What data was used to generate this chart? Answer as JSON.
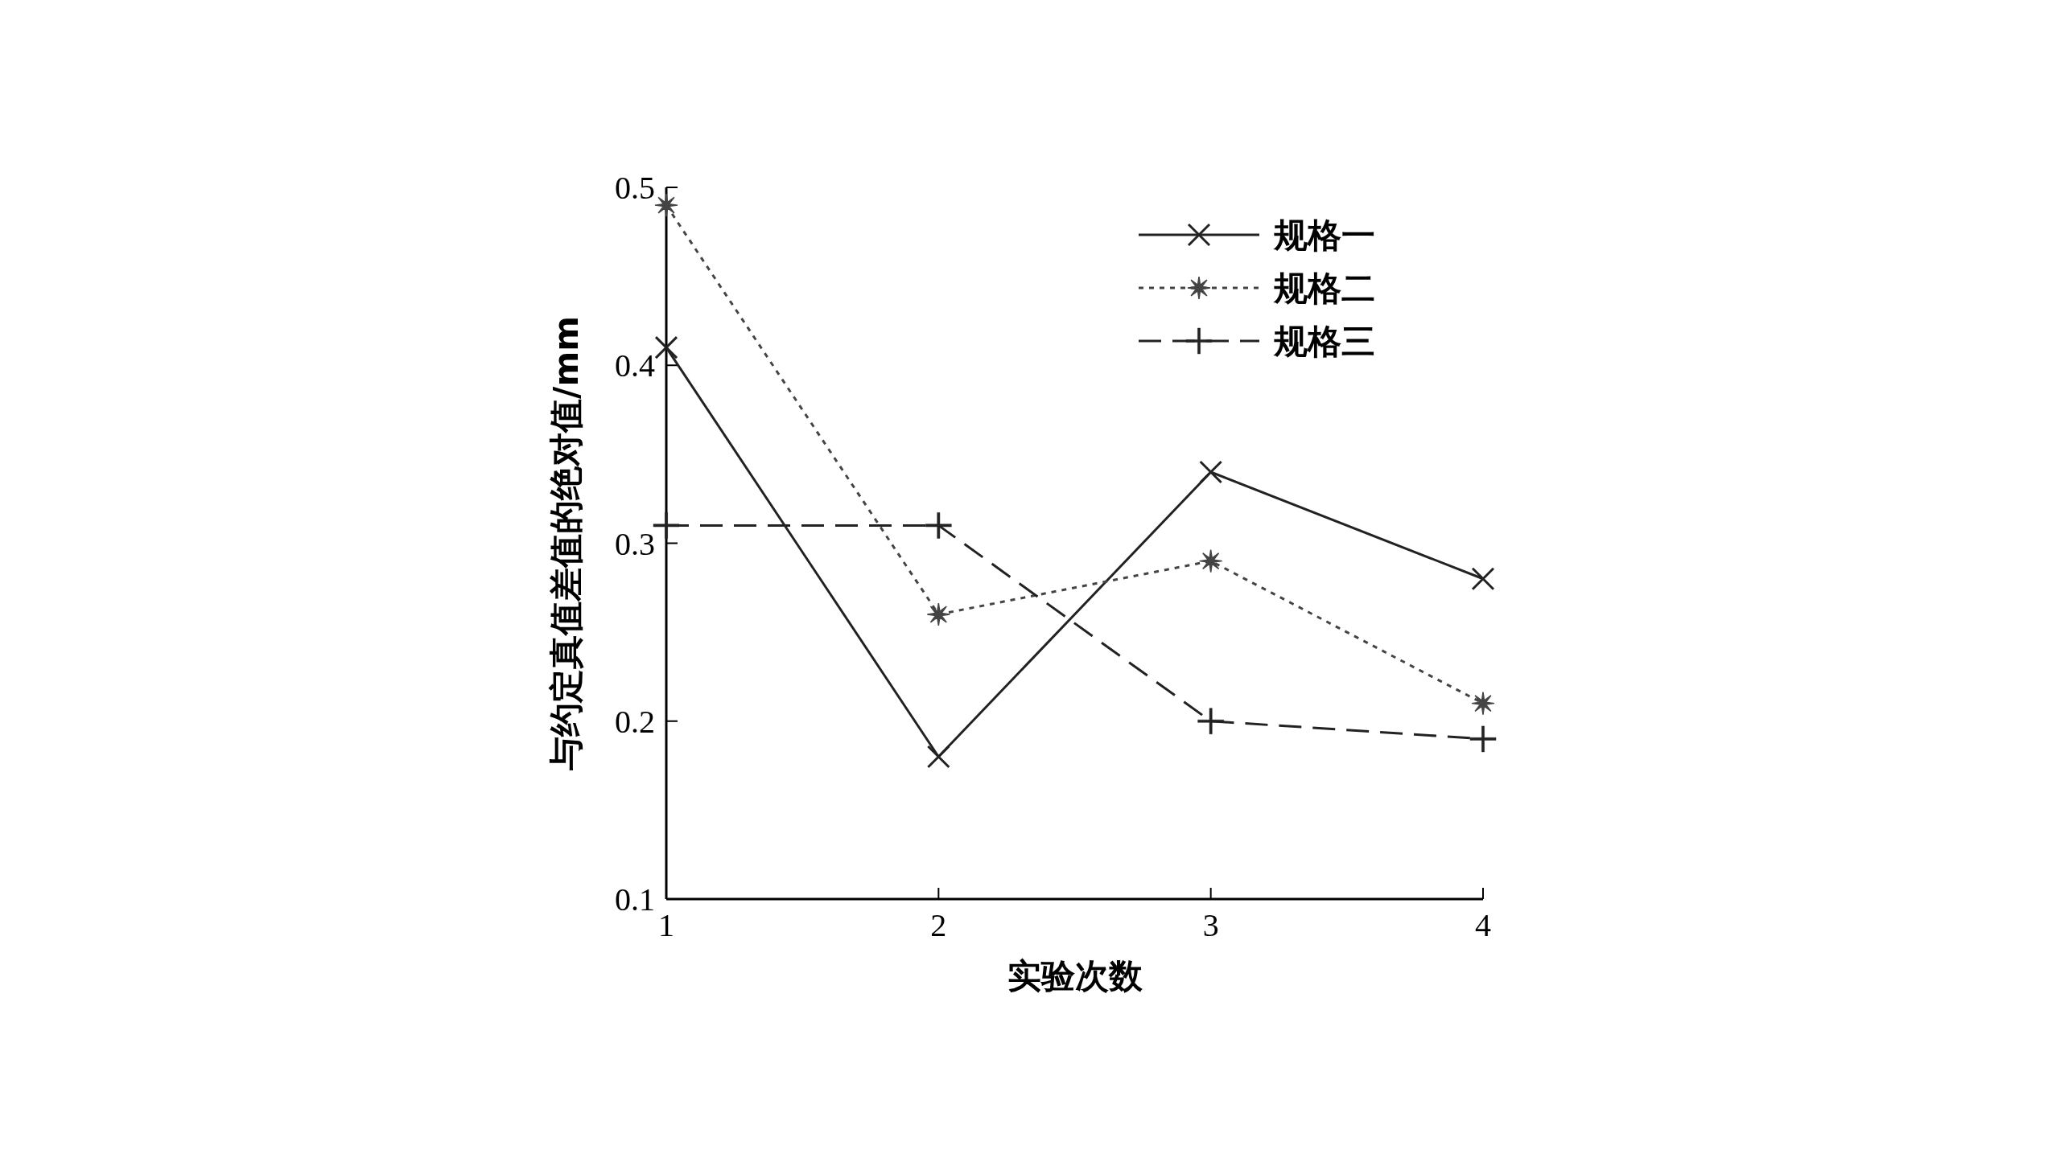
{
  "chart_data": {
    "type": "line",
    "xlabel": "实验次数",
    "ylabel": "与约定真值差值的绝对值/mm",
    "x": [
      1,
      2,
      3,
      4
    ],
    "series": [
      {
        "name": "规格一",
        "color": "#222222",
        "line_style": "solid",
        "marker": "cross",
        "values": [
          0.41,
          0.18,
          0.34,
          0.28
        ]
      },
      {
        "name": "规格二",
        "color": "#444444",
        "line_style": "dotted",
        "marker": "star",
        "values": [
          0.49,
          0.26,
          0.29,
          0.21
        ]
      },
      {
        "name": "规格三",
        "color": "#222222",
        "line_style": "dashed",
        "marker": "plus",
        "values": [
          0.31,
          0.31,
          0.2,
          0.19
        ]
      }
    ],
    "xlim": [
      1,
      4
    ],
    "xticks": [
      1,
      2,
      3,
      4
    ],
    "ylim": [
      0.1,
      0.5
    ],
    "yticks": [
      0.1,
      0.2,
      0.3,
      0.4,
      0.5
    ],
    "grid": false,
    "legend": "top right"
  }
}
